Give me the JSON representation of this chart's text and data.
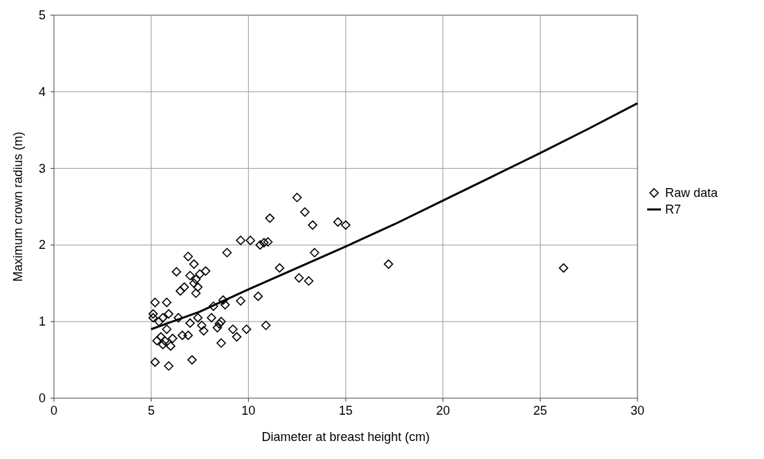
{
  "chart_data": {
    "type": "scatter",
    "xlabel": "Diameter at breast height (cm)",
    "ylabel": "Maximum crown radius (m)",
    "xlim": [
      0,
      30
    ],
    "ylim": [
      0,
      5
    ],
    "xticks": [
      0,
      5,
      10,
      15,
      20,
      25,
      30
    ],
    "yticks": [
      0,
      1,
      2,
      3,
      4,
      5
    ],
    "grid": true,
    "legend": "right",
    "series": [
      {
        "name": "Raw data",
        "marker": "diamond",
        "color": "#000000",
        "x": [
          5.1,
          5.1,
          5.2,
          5.3,
          5.2,
          5.4,
          5.5,
          5.6,
          5.6,
          5.7,
          5.8,
          5.8,
          5.9,
          5.9,
          6.0,
          6.1,
          6.3,
          6.4,
          6.5,
          6.6,
          6.7,
          6.9,
          6.9,
          7.0,
          7.0,
          7.1,
          7.2,
          7.2,
          7.3,
          7.3,
          7.4,
          7.4,
          7.5,
          7.6,
          7.7,
          7.8,
          8.1,
          8.2,
          8.4,
          8.5,
          8.6,
          8.6,
          8.7,
          8.8,
          8.9,
          9.2,
          9.4,
          9.6,
          9.6,
          9.9,
          10.1,
          10.5,
          10.6,
          10.8,
          10.9,
          11.0,
          11.1,
          11.6,
          12.5,
          12.6,
          12.9,
          13.1,
          13.3,
          13.4,
          14.6,
          15.0,
          17.2,
          26.2
        ],
        "values": [
          1.1,
          1.05,
          1.25,
          0.75,
          0.47,
          1.0,
          0.8,
          0.7,
          1.05,
          0.75,
          1.25,
          0.9,
          1.1,
          0.42,
          0.68,
          0.78,
          1.65,
          1.05,
          1.4,
          0.82,
          1.45,
          1.85,
          0.82,
          0.98,
          1.6,
          0.5,
          1.75,
          1.5,
          1.37,
          1.55,
          1.45,
          1.05,
          1.62,
          0.95,
          0.88,
          1.66,
          1.05,
          1.2,
          0.92,
          0.97,
          1.0,
          0.72,
          1.28,
          1.22,
          1.9,
          0.9,
          0.8,
          1.27,
          2.06,
          0.9,
          2.06,
          1.33,
          2.0,
          2.03,
          0.95,
          2.04,
          2.35,
          1.7,
          2.62,
          1.57,
          2.43,
          1.53,
          2.26,
          1.9,
          2.3,
          2.26,
          1.75,
          1.7
        ]
      },
      {
        "name": "R7",
        "type": "line",
        "marker": "none",
        "line_style": "solid",
        "color": "#000000",
        "x": [
          5,
          7.5,
          10,
          12.5,
          15,
          17.5,
          20,
          22.5,
          25,
          27.5,
          30
        ],
        "values": [
          0.9,
          1.13,
          1.42,
          1.7,
          1.98,
          2.27,
          2.58,
          2.89,
          3.2,
          3.52,
          3.85
        ]
      }
    ]
  }
}
